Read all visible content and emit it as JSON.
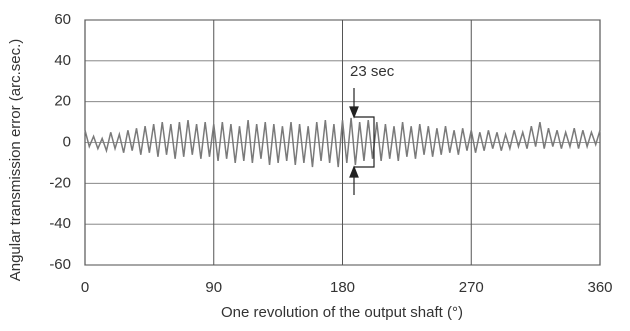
{
  "chart_data": {
    "type": "line",
    "x_label": "One revolution of the output shaft (°)",
    "y_label": "Angular transmission error (arc.sec.)",
    "annotation": "23 sec",
    "color": "#7a7a7a",
    "grid": true,
    "xlim": [
      0,
      360
    ],
    "xticks": [
      0,
      90,
      180,
      270,
      360
    ],
    "ylim": [
      -60,
      60
    ],
    "yticks": [
      -60,
      -40,
      -20,
      0,
      20,
      40,
      60
    ],
    "x": [
      0,
      3,
      6,
      9,
      12,
      15,
      18,
      21,
      24,
      27,
      30,
      33,
      36,
      39,
      42,
      45,
      48,
      51,
      54,
      57,
      60,
      63,
      66,
      69,
      72,
      75,
      78,
      81,
      84,
      87,
      90,
      93,
      96,
      99,
      102,
      105,
      108,
      111,
      114,
      117,
      120,
      123,
      126,
      129,
      132,
      135,
      138,
      141,
      144,
      147,
      150,
      153,
      156,
      159,
      162,
      165,
      168,
      171,
      174,
      177,
      180,
      183,
      186,
      189,
      192,
      195,
      198,
      201,
      204,
      207,
      210,
      213,
      216,
      219,
      222,
      225,
      228,
      231,
      234,
      237,
      240,
      243,
      246,
      249,
      252,
      255,
      258,
      261,
      264,
      267,
      270,
      273,
      276,
      279,
      282,
      285,
      288,
      291,
      294,
      297,
      300,
      303,
      306,
      309,
      312,
      315,
      318,
      321,
      324,
      327,
      330,
      333,
      336,
      339,
      342,
      345,
      348,
      351,
      354,
      357,
      360
    ],
    "values": [
      6,
      -2,
      3,
      -3,
      2,
      -4,
      5,
      -3,
      4,
      -5,
      6,
      -4,
      7,
      -6,
      8,
      -5,
      9,
      -7,
      10,
      -6,
      9,
      -8,
      10,
      -7,
      11,
      -6,
      9,
      -8,
      10,
      -7,
      9,
      -9,
      10,
      -8,
      9,
      -10,
      8,
      -9,
      11,
      -10,
      9,
      -8,
      10,
      -11,
      9,
      -10,
      8,
      -9,
      10,
      -11,
      9,
      -10,
      8,
      -12,
      10,
      -9,
      11,
      -10,
      9,
      -12,
      11,
      -10,
      12,
      -11,
      10,
      -9,
      11,
      -8,
      10,
      -9,
      9,
      -8,
      8,
      -9,
      10,
      -7,
      8,
      -8,
      9,
      -6,
      8,
      -7,
      7,
      -6,
      8,
      -5,
      6,
      -6,
      7,
      -4,
      6,
      -5,
      5,
      -4,
      6,
      -3,
      5,
      -4,
      4,
      -3,
      6,
      -2,
      5,
      -3,
      8,
      -2,
      10,
      -3,
      7,
      -2,
      6,
      -3,
      5,
      -2,
      7,
      -3,
      6,
      -2,
      5,
      -1,
      6
    ]
  }
}
